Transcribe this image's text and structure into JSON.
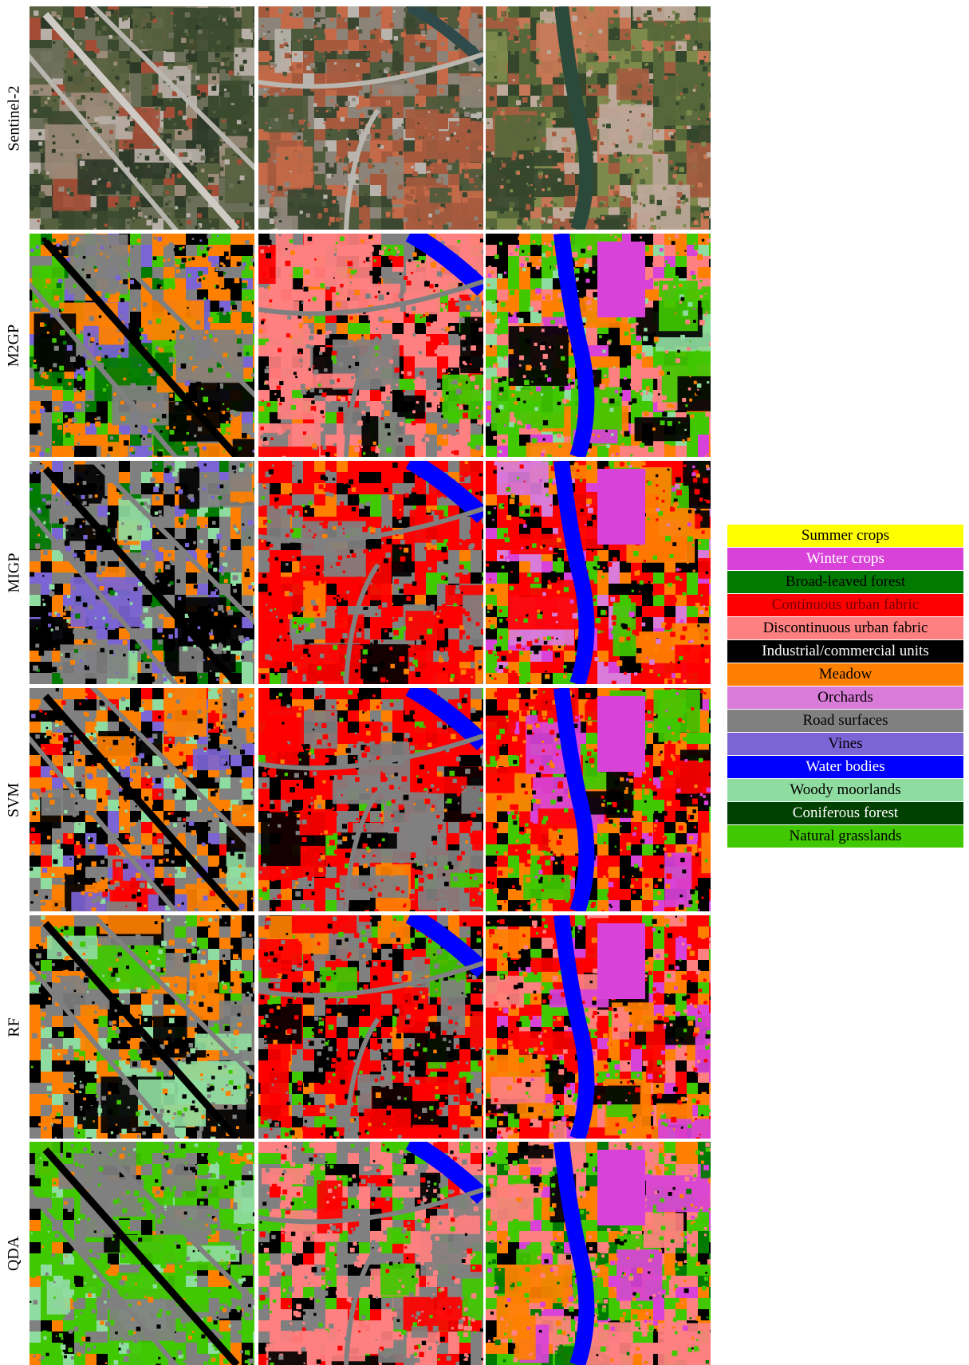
{
  "row_labels": [
    "Sentinel-2",
    "M2GP",
    "MIGP",
    "SVM",
    "RF",
    "QDA"
  ],
  "legend": [
    {
      "label": "Summer crops",
      "color": "#ffff00",
      "text_color": "#000000"
    },
    {
      "label": "Winter crops",
      "color": "#d942d9",
      "text_color": "#ffffff"
    },
    {
      "label": "Broad-leaved forest",
      "color": "#007a00",
      "text_color": "#000000"
    },
    {
      "label": "Continuous urban fabric",
      "color": "#ff0000",
      "text_color": "#7a0000"
    },
    {
      "label": "Discontinuous urban fabric",
      "color": "#ff8080",
      "text_color": "#000000"
    },
    {
      "label": "Industrial/commercial units",
      "color": "#000000",
      "text_color": "#ffffff"
    },
    {
      "label": "Meadow",
      "color": "#ff8000",
      "text_color": "#000000"
    },
    {
      "label": "Orchards",
      "color": "#d97bd9",
      "text_color": "#000000"
    },
    {
      "label": "Road surfaces",
      "color": "#808080",
      "text_color": "#000000"
    },
    {
      "label": "Vines",
      "color": "#7b64d4",
      "text_color": "#000000"
    },
    {
      "label": "Water bodies",
      "color": "#0000ff",
      "text_color": "#ffffff"
    },
    {
      "label": "Woody moorlands",
      "color": "#8fdca0",
      "text_color": "#000000"
    },
    {
      "label": "Coniferous forest",
      "color": "#004000",
      "text_color": "#ffffff"
    },
    {
      "label": "Natural grasslands",
      "color": "#40c800",
      "text_color": "#000000"
    }
  ]
}
